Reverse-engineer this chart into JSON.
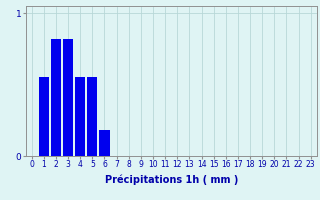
{
  "xlabel": "Précipitations 1h ( mm )",
  "bar_values": [
    0,
    0.55,
    0.82,
    0.82,
    0.55,
    0.55,
    0.18,
    0,
    0,
    0,
    0,
    0,
    0,
    0,
    0,
    0,
    0,
    0,
    0,
    0,
    0,
    0,
    0,
    0
  ],
  "bar_color": "#0000ee",
  "bg_color": "#dff4f4",
  "grid_color": "#b8d8d8",
  "text_color": "#0000aa",
  "xlim": [
    -0.5,
    23.5
  ],
  "ylim": [
    0,
    1.05
  ],
  "yticks": [
    0,
    1
  ],
  "xtick_labels": [
    "0",
    "1",
    "2",
    "3",
    "4",
    "5",
    "6",
    "7",
    "8",
    "9",
    "10",
    "11",
    "12",
    "13",
    "14",
    "15",
    "16",
    "17",
    "18",
    "19",
    "20",
    "21",
    "22",
    "23"
  ],
  "xlabel_fontsize": 7,
  "tick_fontsize": 5.5,
  "bar_width": 0.85
}
